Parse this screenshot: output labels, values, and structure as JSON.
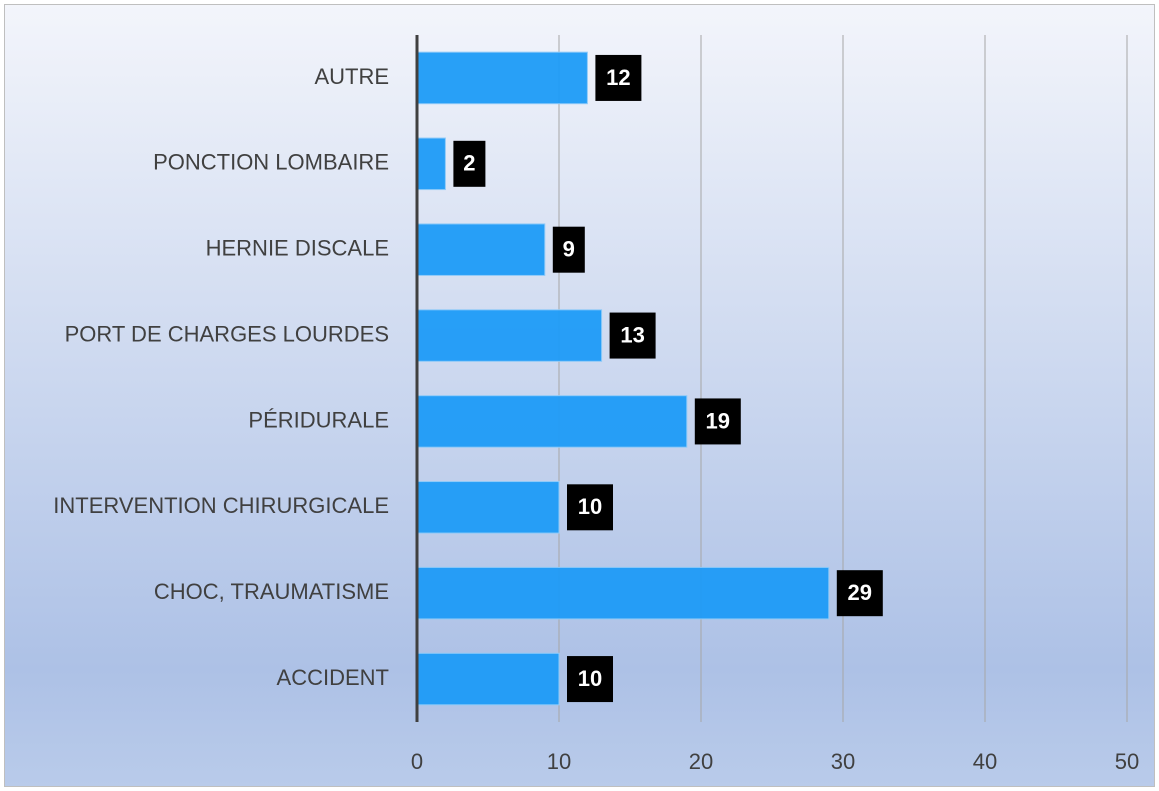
{
  "chart_data": {
    "type": "bar",
    "orientation": "horizontal",
    "categories": [
      "AUTRE",
      "PONCTION LOMBAIRE",
      "HERNIE DISCALE",
      "PORT DE CHARGES LOURDES",
      "PÉRIDURALE",
      "INTERVENTION CHIRURGICALE",
      "CHOC, TRAUMATISME",
      "ACCIDENT"
    ],
    "values": [
      12,
      2,
      9,
      13,
      19,
      10,
      29,
      10
    ],
    "color": "#1e9bf7",
    "xlim": [
      0,
      50
    ],
    "xticks": [
      0,
      10,
      20,
      30,
      40,
      50
    ],
    "grid": true
  }
}
